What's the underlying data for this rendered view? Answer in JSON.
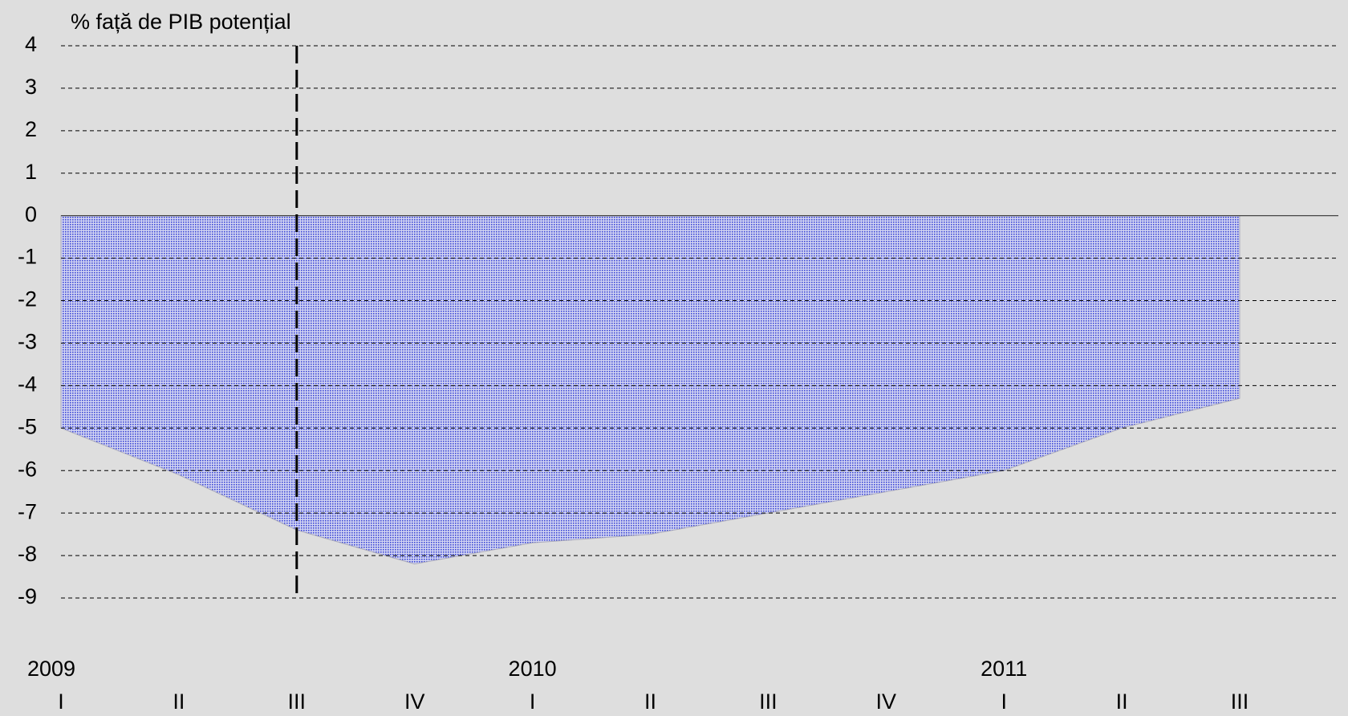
{
  "chart_data": {
    "type": "area",
    "y_axis_label": "% față de PIB potențial",
    "categories": [
      "I",
      "II",
      "III",
      "IV",
      "I",
      "II",
      "III",
      "IV",
      "I",
      "II",
      "III"
    ],
    "category_groups": [
      "2009",
      null,
      null,
      null,
      "2010",
      null,
      null,
      null,
      "2011",
      null,
      null
    ],
    "values": [
      -5.0,
      -6.1,
      -7.4,
      -8.2,
      -7.7,
      -7.5,
      -7.0,
      -6.5,
      -6.0,
      -5.0,
      -4.3
    ],
    "color": "#3b46d6",
    "ylim": [
      -9,
      4
    ],
    "yticks": [
      4,
      3,
      2,
      1,
      0,
      -1,
      -2,
      -3,
      -4,
      -5,
      -6,
      -7,
      -8,
      -9
    ],
    "grid": true,
    "vline_index": 2
  }
}
